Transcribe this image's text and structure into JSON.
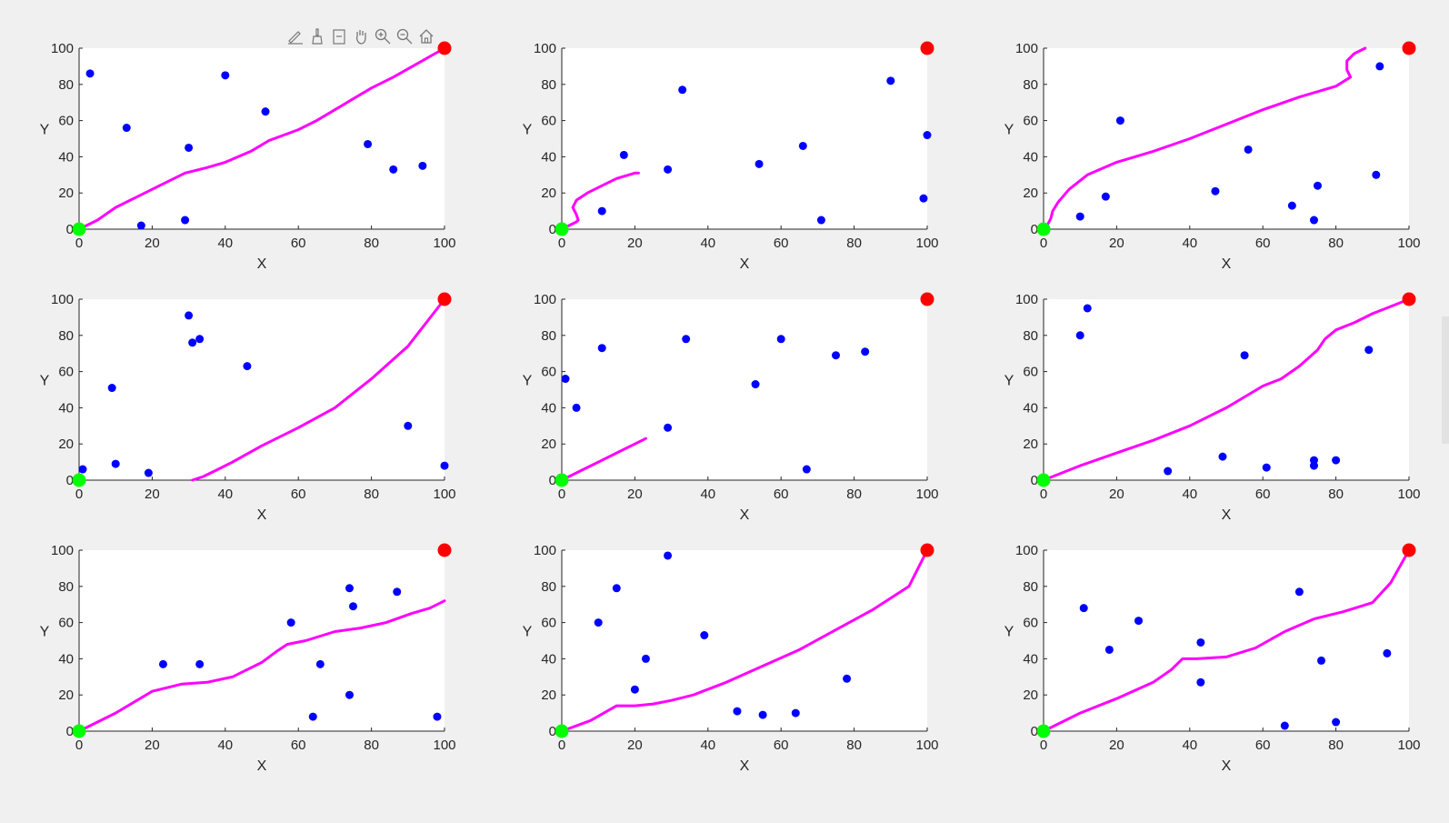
{
  "colors": {
    "background": "#f0f0f0",
    "axes_background": "#ffffff",
    "obstacle": "#0000ff",
    "path": "#ff00ff",
    "start": "#00ff00",
    "goal": "#ff0000",
    "axis": "#262626"
  },
  "toolbar": {
    "buttons": [
      {
        "name": "edit-plot-icon"
      },
      {
        "name": "brush-icon"
      },
      {
        "name": "data-tips-icon"
      },
      {
        "name": "pan-hand-icon"
      },
      {
        "name": "zoom-in-icon"
      },
      {
        "name": "zoom-out-icon"
      },
      {
        "name": "home-icon"
      }
    ]
  },
  "chart_data": [
    {
      "type": "scatter",
      "xlabel": "X",
      "ylabel": "Y",
      "xlim": [
        0,
        100
      ],
      "ylim": [
        0,
        100
      ],
      "xticks": [
        "0",
        "20",
        "40",
        "60",
        "80",
        "100"
      ],
      "yticks": [
        "0",
        "20",
        "40",
        "60",
        "80",
        "100"
      ],
      "start": [
        0,
        0
      ],
      "goal": [
        100,
        100
      ],
      "obstacles": [
        [
          3,
          86
        ],
        [
          13,
          56
        ],
        [
          17,
          2
        ],
        [
          29,
          5
        ],
        [
          30,
          45
        ],
        [
          40,
          85
        ],
        [
          51,
          65
        ],
        [
          79,
          47
        ],
        [
          86,
          33
        ],
        [
          94,
          35
        ]
      ],
      "path": [
        [
          0,
          0
        ],
        [
          5,
          5
        ],
        [
          10,
          12
        ],
        [
          16,
          18
        ],
        [
          22,
          24
        ],
        [
          29,
          31
        ],
        [
          35,
          34
        ],
        [
          40,
          37
        ],
        [
          47,
          43
        ],
        [
          52,
          49
        ],
        [
          60,
          55
        ],
        [
          65,
          60
        ],
        [
          70,
          66
        ],
        [
          75,
          72
        ],
        [
          80,
          78
        ],
        [
          86,
          84
        ],
        [
          93,
          92
        ],
        [
          100,
          100
        ]
      ]
    },
    {
      "type": "scatter",
      "xlabel": "X",
      "ylabel": "Y",
      "xlim": [
        0,
        100
      ],
      "ylim": [
        0,
        100
      ],
      "xticks": [
        "0",
        "20",
        "40",
        "60",
        "80",
        "100"
      ],
      "yticks": [
        "0",
        "20",
        "40",
        "60",
        "80",
        "100"
      ],
      "start": [
        0,
        0
      ],
      "goal": [
        100,
        100
      ],
      "obstacles": [
        [
          11,
          10
        ],
        [
          17,
          41
        ],
        [
          29,
          33
        ],
        [
          33,
          77
        ],
        [
          54,
          36
        ],
        [
          66,
          46
        ],
        [
          71,
          5
        ],
        [
          90,
          82
        ],
        [
          99,
          17
        ],
        [
          100,
          52
        ]
      ],
      "path": [
        [
          0,
          0
        ],
        [
          2,
          2
        ],
        [
          4,
          4
        ],
        [
          4.5,
          5
        ],
        [
          4,
          8
        ],
        [
          3,
          12
        ],
        [
          4,
          16
        ],
        [
          7,
          20
        ],
        [
          11,
          24
        ],
        [
          15,
          28
        ],
        [
          20,
          31
        ],
        [
          21,
          31
        ]
      ]
    },
    {
      "type": "scatter",
      "xlabel": "X",
      "ylabel": "Y",
      "xlim": [
        0,
        100
      ],
      "ylim": [
        0,
        100
      ],
      "xticks": [
        "0",
        "20",
        "40",
        "60",
        "80",
        "100"
      ],
      "yticks": [
        "0",
        "20",
        "40",
        "60",
        "80",
        "100"
      ],
      "start": [
        0,
        0
      ],
      "goal": [
        100,
        100
      ],
      "obstacles": [
        [
          10,
          7
        ],
        [
          17,
          18
        ],
        [
          21,
          60
        ],
        [
          47,
          21
        ],
        [
          56,
          44
        ],
        [
          68,
          13
        ],
        [
          74,
          5
        ],
        [
          75,
          24
        ],
        [
          91,
          30
        ],
        [
          92,
          90
        ]
      ],
      "path": [
        [
          0,
          0
        ],
        [
          1,
          2
        ],
        [
          2,
          6
        ],
        [
          2.5,
          10
        ],
        [
          4,
          15
        ],
        [
          7,
          22
        ],
        [
          12,
          30
        ],
        [
          20,
          37
        ],
        [
          30,
          43
        ],
        [
          40,
          50
        ],
        [
          50,
          58
        ],
        [
          60,
          66
        ],
        [
          70,
          73
        ],
        [
          80,
          79
        ],
        [
          84,
          84
        ],
        [
          83,
          88
        ],
        [
          83,
          93
        ],
        [
          85,
          97
        ],
        [
          88,
          100
        ]
      ]
    },
    {
      "type": "scatter",
      "xlabel": "X",
      "ylabel": "Y",
      "xlim": [
        0,
        100
      ],
      "ylim": [
        0,
        100
      ],
      "xticks": [
        "0",
        "20",
        "40",
        "60",
        "80",
        "100"
      ],
      "yticks": [
        "0",
        "20",
        "40",
        "60",
        "80",
        "100"
      ],
      "start": [
        0,
        0
      ],
      "goal": [
        100,
        100
      ],
      "obstacles": [
        [
          1,
          6
        ],
        [
          9,
          51
        ],
        [
          10,
          9
        ],
        [
          19,
          4
        ],
        [
          30,
          91
        ],
        [
          31,
          76
        ],
        [
          33,
          78
        ],
        [
          46,
          63
        ],
        [
          90,
          30
        ],
        [
          100,
          8
        ]
      ],
      "path": [
        [
          31,
          0
        ],
        [
          34,
          2
        ],
        [
          38,
          6
        ],
        [
          42,
          10
        ],
        [
          50,
          19
        ],
        [
          60,
          29
        ],
        [
          70,
          40
        ],
        [
          80,
          56
        ],
        [
          90,
          74
        ],
        [
          100,
          100
        ]
      ]
    },
    {
      "type": "scatter",
      "xlabel": "X",
      "ylabel": "Y",
      "xlim": [
        0,
        100
      ],
      "ylim": [
        0,
        100
      ],
      "xticks": [
        "0",
        "20",
        "40",
        "60",
        "80",
        "100"
      ],
      "yticks": [
        "0",
        "20",
        "40",
        "60",
        "80",
        "100"
      ],
      "start": [
        0,
        0
      ],
      "goal": [
        100,
        100
      ],
      "obstacles": [
        [
          1,
          56
        ],
        [
          4,
          40
        ],
        [
          11,
          73
        ],
        [
          29,
          29
        ],
        [
          34,
          78
        ],
        [
          53,
          53
        ],
        [
          60,
          78
        ],
        [
          67,
          6
        ],
        [
          75,
          69
        ],
        [
          83,
          71
        ]
      ],
      "path": [
        [
          0,
          0
        ],
        [
          5,
          5
        ],
        [
          10,
          10
        ],
        [
          15,
          15
        ],
        [
          20,
          20
        ],
        [
          23,
          23
        ]
      ]
    },
    {
      "type": "scatter",
      "xlabel": "X",
      "ylabel": "Y",
      "xlim": [
        0,
        100
      ],
      "ylim": [
        0,
        100
      ],
      "xticks": [
        "0",
        "20",
        "40",
        "60",
        "80",
        "100"
      ],
      "yticks": [
        "0",
        "20",
        "40",
        "60",
        "80",
        "100"
      ],
      "start": [
        0,
        0
      ],
      "goal": [
        100,
        100
      ],
      "obstacles": [
        [
          10,
          80
        ],
        [
          12,
          95
        ],
        [
          34,
          5
        ],
        [
          49,
          13
        ],
        [
          55,
          69
        ],
        [
          61,
          7
        ],
        [
          74,
          8
        ],
        [
          74,
          11
        ],
        [
          80,
          11
        ],
        [
          89,
          72
        ]
      ],
      "path": [
        [
          0,
          0
        ],
        [
          10,
          8
        ],
        [
          20,
          15
        ],
        [
          30,
          22
        ],
        [
          40,
          30
        ],
        [
          50,
          40
        ],
        [
          55,
          46
        ],
        [
          60,
          52
        ],
        [
          65,
          56
        ],
        [
          70,
          63
        ],
        [
          75,
          72
        ],
        [
          77,
          78
        ],
        [
          80,
          83
        ],
        [
          85,
          87
        ],
        [
          90,
          92
        ],
        [
          95,
          96
        ],
        [
          100,
          100
        ]
      ]
    },
    {
      "type": "scatter",
      "xlabel": "X",
      "ylabel": "Y",
      "xlim": [
        0,
        100
      ],
      "ylim": [
        0,
        100
      ],
      "xticks": [
        "0",
        "20",
        "40",
        "60",
        "80",
        "100"
      ],
      "yticks": [
        "0",
        "20",
        "40",
        "60",
        "80",
        "100"
      ],
      "start": [
        0,
        0
      ],
      "goal": [
        100,
        100
      ],
      "obstacles": [
        [
          23,
          37
        ],
        [
          33,
          37
        ],
        [
          58,
          60
        ],
        [
          64,
          8
        ],
        [
          66,
          37
        ],
        [
          74,
          79
        ],
        [
          74,
          20
        ],
        [
          75,
          69
        ],
        [
          87,
          77
        ],
        [
          98,
          8
        ]
      ],
      "path": [
        [
          0,
          0
        ],
        [
          10,
          10
        ],
        [
          20,
          22
        ],
        [
          28,
          26
        ],
        [
          35,
          27
        ],
        [
          42,
          30
        ],
        [
          50,
          38
        ],
        [
          54,
          44
        ],
        [
          57,
          48
        ],
        [
          62,
          50
        ],
        [
          70,
          55
        ],
        [
          77,
          57
        ],
        [
          84,
          60
        ],
        [
          91,
          65
        ],
        [
          96,
          68
        ],
        [
          100,
          72
        ]
      ]
    },
    {
      "type": "scatter",
      "xlabel": "X",
      "ylabel": "Y",
      "xlim": [
        0,
        100
      ],
      "ylim": [
        0,
        100
      ],
      "xticks": [
        "0",
        "20",
        "40",
        "60",
        "80",
        "100"
      ],
      "yticks": [
        "0",
        "20",
        "40",
        "60",
        "80",
        "100"
      ],
      "start": [
        0,
        0
      ],
      "goal": [
        100,
        100
      ],
      "obstacles": [
        [
          10,
          60
        ],
        [
          15,
          79
        ],
        [
          20,
          23
        ],
        [
          23,
          40
        ],
        [
          29,
          97
        ],
        [
          39,
          53
        ],
        [
          48,
          11
        ],
        [
          55,
          9
        ],
        [
          64,
          10
        ],
        [
          78,
          29
        ]
      ],
      "path": [
        [
          0,
          0
        ],
        [
          8,
          6
        ],
        [
          15,
          14
        ],
        [
          20,
          14
        ],
        [
          25,
          15
        ],
        [
          30,
          17
        ],
        [
          36,
          20
        ],
        [
          45,
          27
        ],
        [
          55,
          36
        ],
        [
          65,
          45
        ],
        [
          75,
          56
        ],
        [
          85,
          67
        ],
        [
          95,
          80
        ],
        [
          100,
          100
        ]
      ]
    },
    {
      "type": "scatter",
      "xlabel": "X",
      "ylabel": "Y",
      "xlim": [
        0,
        100
      ],
      "ylim": [
        0,
        100
      ],
      "xticks": [
        "0",
        "20",
        "40",
        "60",
        "80",
        "100"
      ],
      "yticks": [
        "0",
        "20",
        "40",
        "60",
        "80",
        "100"
      ],
      "start": [
        0,
        0
      ],
      "goal": [
        100,
        100
      ],
      "obstacles": [
        [
          11,
          68
        ],
        [
          18,
          45
        ],
        [
          26,
          61
        ],
        [
          43,
          49
        ],
        [
          43,
          27
        ],
        [
          66,
          3
        ],
        [
          70,
          77
        ],
        [
          76,
          39
        ],
        [
          80,
          5
        ],
        [
          94,
          43
        ]
      ],
      "path": [
        [
          0,
          0
        ],
        [
          10,
          10
        ],
        [
          20,
          18
        ],
        [
          30,
          27
        ],
        [
          35,
          34
        ],
        [
          38,
          40
        ],
        [
          42,
          40
        ],
        [
          50,
          41
        ],
        [
          58,
          46
        ],
        [
          66,
          55
        ],
        [
          74,
          62
        ],
        [
          82,
          66
        ],
        [
          90,
          71
        ],
        [
          95,
          82
        ],
        [
          100,
          100
        ]
      ]
    }
  ]
}
